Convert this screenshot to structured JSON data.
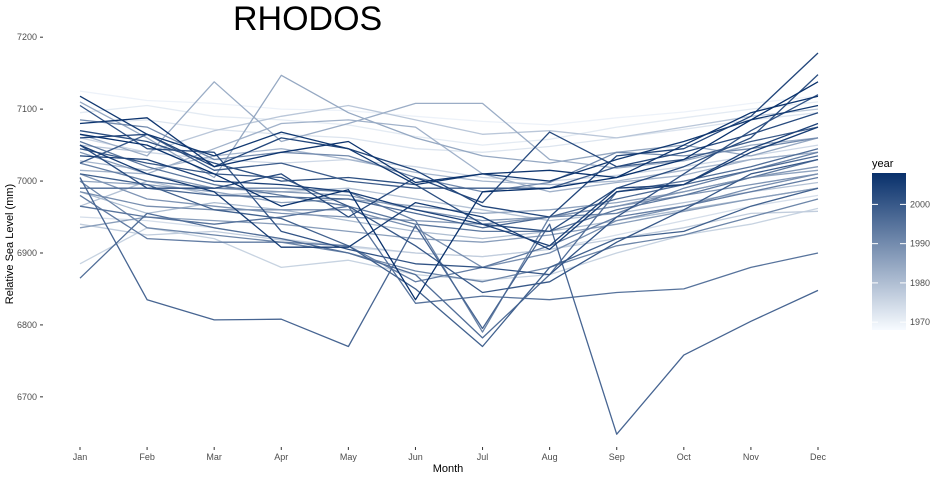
{
  "chart_data": {
    "type": "line",
    "title": "RHODOS",
    "xlabel": "Month",
    "ylabel": "Relative Sea Level (mm)",
    "categories": [
      "Jan",
      "Feb",
      "Mar",
      "Apr",
      "May",
      "Jun",
      "Jul",
      "Aug",
      "Sep",
      "Oct",
      "Nov",
      "Dec"
    ],
    "ylim": [
      6640,
      7210
    ],
    "yticks": [
      6700,
      6800,
      6900,
      7000,
      7100,
      7200
    ],
    "legend": {
      "title": "year",
      "position": "right",
      "range": [
        1968,
        2008
      ],
      "ticks": [
        1970,
        1980,
        1990,
        2000
      ],
      "color_low": "#f7fbff",
      "color_high": "#08306b"
    },
    "grid": false,
    "series": [
      {
        "year": 1969,
        "values": [
          7125,
          7112,
          7108,
          7100,
          7098,
          7090,
          7083,
          7078,
          7088,
          7096,
          7108,
          7118
        ]
      },
      {
        "year": 1970,
        "values": [
          7095,
          7105,
          7090,
          7085,
          7078,
          7062,
          7050,
          7058,
          7075,
          7088,
          7100,
          7110
        ]
      },
      {
        "year": 1971,
        "values": [
          7080,
          7085,
          7072,
          7065,
          7060,
          7045,
          7040,
          7048,
          7060,
          7072,
          7085,
          7095
        ]
      },
      {
        "year": 1972,
        "values": [
          6950,
          6945,
          6935,
          6920,
          6908,
          6900,
          6895,
          6905,
          6925,
          6945,
          6965,
          6980
        ]
      },
      {
        "year": 1973,
        "values": [
          7060,
          7040,
          7030,
          7025,
          7030,
          7020,
          7005,
          7000,
          7008,
          7020,
          7035,
          7050
        ]
      },
      {
        "year": 1974,
        "values": [
          6885,
          6935,
          6920,
          6880,
          6890,
          6870,
          6862,
          6870,
          6900,
          6925,
          6940,
          6962
        ]
      },
      {
        "year": 1975,
        "values": [
          6940,
          6925,
          6930,
          6918,
          6910,
          6900,
          6895,
          6905,
          6920,
          6935,
          6955,
          6958
        ]
      },
      {
        "year": 1976,
        "values": [
          7050,
          7040,
          7070,
          7090,
          7105,
          7085,
          7065,
          7070,
          7060,
          7075,
          7090,
          7100
        ]
      },
      {
        "year": 1977,
        "values": [
          6965,
          7000,
          6980,
          6985,
          6990,
          6975,
          6960,
          6945,
          6955,
          6970,
          6985,
          6998
        ]
      },
      {
        "year": 1978,
        "values": [
          6985,
          6955,
          6970,
          6960,
          6945,
          6930,
          6920,
          6930,
          6945,
          6960,
          6975,
          6990
        ]
      },
      {
        "year": 1979,
        "values": [
          7028,
          7015,
          7035,
          7045,
          7030,
          7012,
          7000,
          6995,
          7000,
          7015,
          7030,
          7040
        ]
      },
      {
        "year": 1980,
        "values": [
          7015,
          7010,
          7045,
          7080,
          7085,
          7075,
          7010,
          6985,
          6998,
          7008,
          7030,
          7040
        ]
      },
      {
        "year": 1981,
        "values": [
          7065,
          7035,
          7138,
          7055,
          7080,
          7108,
          7108,
          7030,
          7018,
          7028,
          7050,
          7060
        ]
      },
      {
        "year": 1982,
        "values": [
          7110,
          7060,
          7005,
          7147,
          7095,
          7060,
          7035,
          7025,
          7040,
          7050,
          7035,
          7060
        ]
      },
      {
        "year": 1983,
        "values": [
          7000,
          6995,
          6985,
          6970,
          6975,
          6965,
          6955,
          6960,
          6970,
          6985,
          7005,
          7015
        ]
      },
      {
        "year": 1984,
        "values": [
          6935,
          6950,
          6945,
          6940,
          6930,
          6920,
          6915,
          6925,
          6940,
          6958,
          6975,
          6990
        ]
      },
      {
        "year": 1985,
        "values": [
          7040,
          7010,
          6990,
          6985,
          6980,
          6960,
          6945,
          6950,
          6965,
          6985,
          7005,
          7020
        ]
      },
      {
        "year": 1986,
        "values": [
          7010,
          6975,
          6965,
          6955,
          6950,
          6945,
          6940,
          6950,
          6965,
          6980,
          6995,
          7010
        ]
      },
      {
        "year": 1987,
        "values": [
          6985,
          6965,
          6960,
          6960,
          6960,
          6935,
          6880,
          6900,
          6945,
          6965,
          6990,
          7010
        ]
      },
      {
        "year": 1988,
        "values": [
          7085,
          7075,
          7030,
          7040,
          7035,
          7005,
          6985,
          6998,
          7040,
          7035,
          7045,
          7060
        ]
      },
      {
        "year": 1989,
        "values": [
          7000,
          6935,
          6925,
          6915,
          6900,
          6875,
          6860,
          6880,
          6910,
          6925,
          6950,
          6975
        ]
      },
      {
        "year": 1990,
        "values": [
          7025,
          7000,
          6990,
          6990,
          6985,
          6945,
          6790,
          6950,
          6955,
          6990,
          7015,
          7040
        ]
      },
      {
        "year": 1991,
        "values": [
          6980,
          6920,
          6915,
          6915,
          6910,
          6860,
          6880,
          6910,
          6950,
          6965,
          6985,
          7005
        ]
      },
      {
        "year": 1992,
        "values": [
          7055,
          7020,
          6995,
          6980,
          6965,
          6940,
          6930,
          6930,
          6960,
          6980,
          7005,
          7030
        ]
      },
      {
        "year": 1993,
        "values": [
          6965,
          6950,
          6940,
          6950,
          6965,
          6830,
          6840,
          6835,
          6845,
          6850,
          6880,
          6900
        ]
      },
      {
        "year": 1994,
        "values": [
          6865,
          6955,
          6935,
          6920,
          6900,
          6870,
          6782,
          6870,
          6985,
          7000,
          7020,
          7045
        ]
      },
      {
        "year": 1995,
        "values": [
          6990,
          6990,
          6980,
          6978,
          6975,
          6955,
          6935,
          6950,
          6975,
          6995,
          7015,
          7035
        ]
      },
      {
        "year": 1996,
        "values": [
          7005,
          6835,
          6807,
          6808,
          6770,
          6938,
          6795,
          6940,
          6648,
          6758,
          6805,
          6848
        ]
      },
      {
        "year": 1997,
        "values": [
          7010,
          6995,
          6960,
          6948,
          6910,
          6850,
          6770,
          6880,
          6920,
          6930,
          6965,
          6990
        ]
      },
      {
        "year": 1998,
        "values": [
          7025,
          7065,
          7015,
          7025,
          7000,
          6990,
          6990,
          6990,
          7020,
          7030,
          7055,
          7075
        ]
      },
      {
        "year": 1999,
        "values": [
          7045,
          7025,
          7010,
          7005,
          6965,
          6910,
          6845,
          6860,
          6915,
          6960,
          7010,
          7030
        ]
      },
      {
        "year": 2000,
        "values": [
          7105,
          7045,
          7040,
          6930,
          6905,
          6885,
          6880,
          6870,
          6950,
          7010,
          7070,
          7120
        ]
      },
      {
        "year": 2001,
        "values": [
          7070,
          7055,
          7025,
          7000,
          7005,
          6995,
          6940,
          6930,
          6990,
          7020,
          7060,
          7148
        ]
      },
      {
        "year": 2002,
        "values": [
          7050,
          6990,
          6990,
          7010,
          6950,
          7005,
          6970,
          7068,
          7020,
          7040,
          7065,
          7095
        ]
      },
      {
        "year": 2003,
        "values": [
          7060,
          7065,
          7020,
          7060,
          7045,
          7015,
          6965,
          6950,
          7035,
          7045,
          7090,
          7178
        ]
      },
      {
        "year": 2004,
        "values": [
          7035,
          7030,
          7000,
          6995,
          6985,
          6960,
          6940,
          6910,
          6990,
          6995,
          7045,
          7080
        ]
      },
      {
        "year": 2005,
        "values": [
          7050,
          7010,
          6985,
          6908,
          6908,
          6970,
          6950,
          6905,
          6985,
          6995,
          7040,
          7075
        ]
      },
      {
        "year": 2006,
        "values": [
          7118,
          7065,
          7035,
          7068,
          7045,
          6995,
          7010,
          7000,
          7030,
          7055,
          7085,
          7105
        ]
      },
      {
        "year": 2007,
        "values": [
          7080,
          7088,
          7020,
          7040,
          7055,
          6998,
          7010,
          7015,
          7005,
          7050,
          7095,
          7118
        ]
      },
      {
        "year": 2008,
        "values": [
          7065,
          7050,
          7010,
          6965,
          6988,
          6835,
          6985,
          6990,
          7005,
          7030,
          7085,
          7138
        ]
      }
    ]
  }
}
